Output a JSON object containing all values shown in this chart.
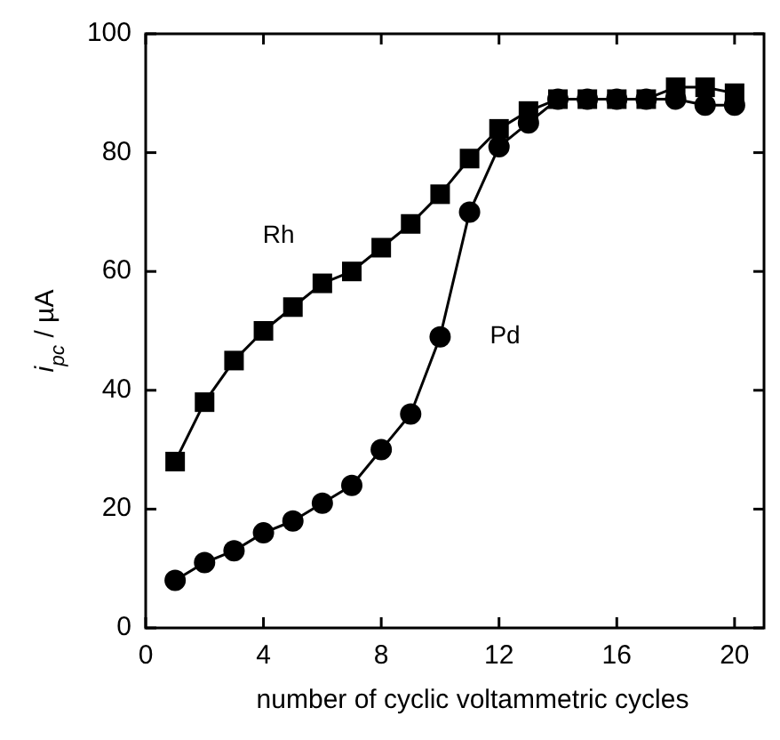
{
  "chart_data": {
    "type": "line",
    "xlabel": "number of cyclic voltammetric cycles",
    "ylabel": "i$_{pc}$ / µA",
    "x": [
      1,
      2,
      3,
      4,
      5,
      6,
      7,
      8,
      9,
      10,
      11,
      12,
      13,
      14,
      15,
      16,
      17,
      18,
      19,
      20
    ],
    "xlim": [
      0,
      21
    ],
    "xticks": [
      0,
      4,
      8,
      12,
      16,
      20
    ],
    "ylim": [
      0,
      100
    ],
    "yticks": [
      0,
      20,
      40,
      60,
      80,
      100
    ],
    "grid": false,
    "line_style": "solid",
    "series": [
      {
        "name": "Rh",
        "color": "#000000",
        "marker": "square",
        "values": [
          28,
          38,
          45,
          50,
          54,
          58,
          60,
          64,
          68,
          73,
          79,
          84,
          87,
          89,
          89,
          89,
          89,
          91,
          91,
          90
        ]
      },
      {
        "name": "Pd",
        "color": "#000000",
        "marker": "circle",
        "values": [
          8,
          11,
          13,
          16,
          18,
          21,
          24,
          30,
          36,
          49,
          70,
          81,
          85,
          89,
          89,
          89,
          89,
          89,
          88,
          88
        ]
      }
    ]
  }
}
